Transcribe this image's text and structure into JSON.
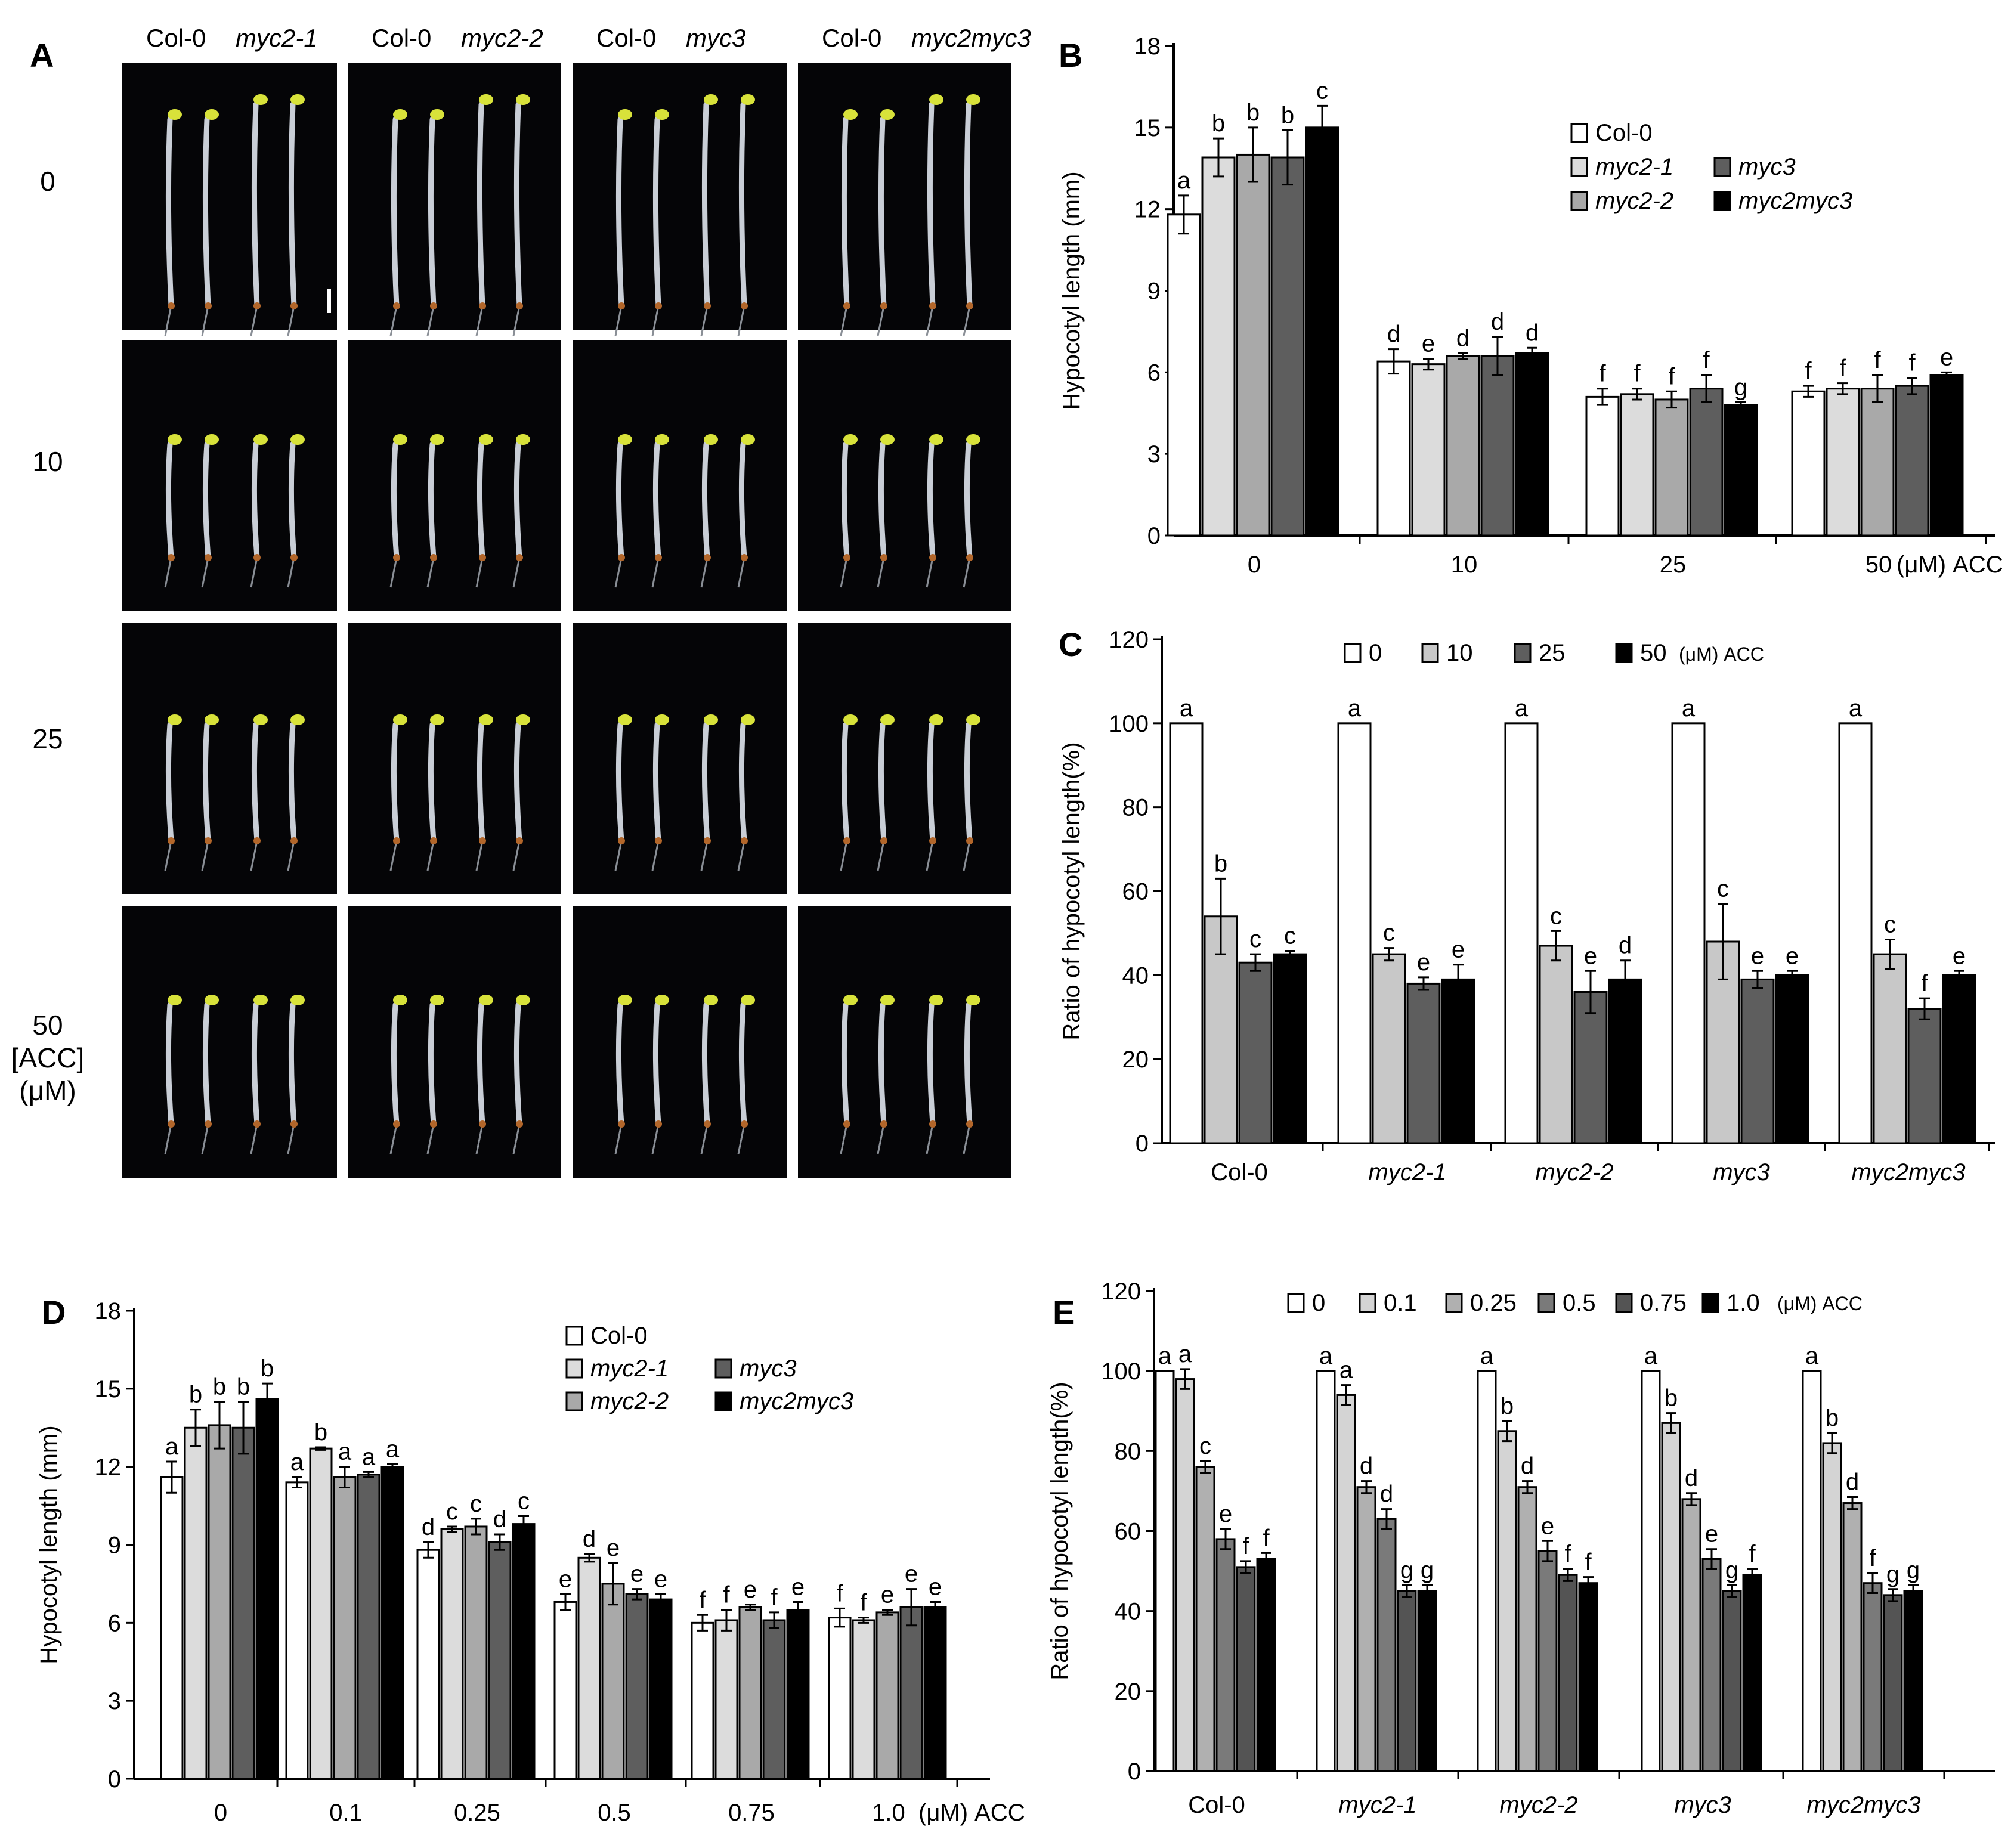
{
  "panel_letters": {
    "A": "A",
    "B": "B",
    "C": "C",
    "D": "D",
    "E": "E"
  },
  "colors": {
    "0": "#ffffff",
    "1": "#dcdcdc",
    "2": "#a9a9a9",
    "3": "#5e5e5e",
    "4": "#000000",
    "photo_bg": "#050507"
  },
  "panel_A": {
    "columns": [
      {
        "pair": [
          "Col-0",
          "myc2-1"
        ]
      },
      {
        "pair": [
          "Col-0",
          "myc2-2"
        ]
      },
      {
        "pair": [
          "Col-0",
          "myc3"
        ]
      },
      {
        "pair": [
          "Col-0",
          "myc2myc3"
        ]
      }
    ],
    "rows": [
      "0",
      "10",
      "25",
      "50"
    ],
    "row_unit_lines": [
      "[ACC]",
      "(μM)"
    ]
  },
  "chart_data": [
    {
      "id": "B",
      "type": "bar",
      "ylabel": "Hypocotyl length (mm)",
      "ylim": [
        0,
        18
      ],
      "yticks": [
        "0",
        "3",
        "6",
        "9",
        "12",
        "15",
        "18"
      ],
      "categories": [
        "0",
        "10",
        "25",
        "50"
      ],
      "xsuffix": "(μM) ACC",
      "legend": [
        "Col-0",
        "myc2-1",
        "myc2-2",
        "myc3",
        "myc2myc3"
      ],
      "legend_layout": "col-0-then-two-columns",
      "series": [
        {
          "name": "Col-0",
          "values": [
            11.8,
            6.4,
            5.1,
            5.3
          ],
          "errors": [
            0.7,
            0.45,
            0.3,
            0.2
          ],
          "letters": [
            "a",
            "d",
            "f",
            "f"
          ]
        },
        {
          "name": "myc2-1",
          "values": [
            13.9,
            6.3,
            5.2,
            5.4
          ],
          "errors": [
            0.7,
            0.2,
            0.2,
            0.2
          ],
          "letters": [
            "b",
            "e",
            "f",
            "f"
          ]
        },
        {
          "name": "myc2-2",
          "values": [
            14.0,
            6.6,
            5.0,
            5.4
          ],
          "errors": [
            1.0,
            0.1,
            0.3,
            0.5
          ],
          "letters": [
            "b",
            "d",
            "f",
            "f"
          ]
        },
        {
          "name": "myc3",
          "values": [
            13.9,
            6.6,
            5.4,
            5.5
          ],
          "errors": [
            1.0,
            0.7,
            0.5,
            0.3
          ],
          "letters": [
            "b",
            "d",
            "f",
            "f"
          ]
        },
        {
          "name": "myc2myc3",
          "values": [
            15.0,
            6.7,
            4.8,
            5.9
          ],
          "errors": [
            0.8,
            0.2,
            0.1,
            0.1
          ],
          "letters": [
            "c",
            "d",
            "g",
            "e"
          ]
        }
      ]
    },
    {
      "id": "C",
      "type": "bar",
      "ylabel": "Ratio of hypocotyl length(%)",
      "ylim": [
        0,
        120
      ],
      "yticks": [
        "0",
        "20",
        "40",
        "60",
        "80",
        "100",
        "120"
      ],
      "categories": [
        "Col-0",
        "myc2-1",
        "myc2-2",
        "myc3",
        "myc2myc3"
      ],
      "xsuffix": "",
      "legend": [
        "0",
        "10",
        "25",
        "50"
      ],
      "legend_suffix": "(μM) ACC",
      "series": [
        {
          "name": "0",
          "values": [
            100,
            100,
            100,
            100,
            100
          ],
          "errors": [
            0,
            0,
            0,
            0,
            0
          ],
          "letters": [
            "a",
            "a",
            "a",
            "a",
            "a"
          ]
        },
        {
          "name": "10",
          "values": [
            54,
            45,
            47,
            48,
            45
          ],
          "errors": [
            9,
            1.5,
            3.5,
            9,
            3.5
          ],
          "letters": [
            "b",
            "c",
            "c",
            "c",
            "c"
          ]
        },
        {
          "name": "25",
          "values": [
            43,
            38,
            36,
            39,
            32
          ],
          "errors": [
            2,
            1.5,
            5,
            2,
            2.5
          ],
          "letters": [
            "c",
            "e",
            "e",
            "e",
            "f"
          ]
        },
        {
          "name": "50",
          "values": [
            45,
            39,
            39,
            40,
            40
          ],
          "errors": [
            0.8,
            3.5,
            4.5,
            1,
            1
          ],
          "letters": [
            "c",
            "e",
            "d",
            "e",
            "e"
          ]
        }
      ]
    },
    {
      "id": "D",
      "type": "bar",
      "ylabel": "Hypocotyl length (mm)",
      "ylim": [
        0,
        18
      ],
      "yticks": [
        "0",
        "3",
        "6",
        "9",
        "12",
        "15",
        "18"
      ],
      "categories": [
        "0",
        "0.1",
        "0.25",
        "0.5",
        "0.75",
        "1.0"
      ],
      "xsuffix": "(μM) ACC",
      "legend": [
        "Col-0",
        "myc2-1",
        "myc2-2",
        "myc3",
        "myc2myc3"
      ],
      "series": [
        {
          "name": "Col-0",
          "values": [
            11.6,
            11.4,
            8.8,
            6.8,
            6.0,
            6.2
          ],
          "errors": [
            0.6,
            0.2,
            0.3,
            0.3,
            0.3,
            0.35
          ],
          "letters": [
            "a",
            "a",
            "d",
            "e",
            "f",
            "f"
          ]
        },
        {
          "name": "myc2-1",
          "values": [
            13.5,
            12.7,
            9.6,
            8.5,
            6.1,
            6.1
          ],
          "errors": [
            0.7,
            0.05,
            0.1,
            0.15,
            0.4,
            0.1
          ],
          "letters": [
            "b",
            "b",
            "c",
            "d",
            "f",
            "f"
          ]
        },
        {
          "name": "myc2-2",
          "values": [
            13.6,
            11.6,
            9.7,
            7.5,
            6.6,
            6.4
          ],
          "errors": [
            0.9,
            0.4,
            0.3,
            0.8,
            0.1,
            0.1
          ],
          "letters": [
            "b",
            "a",
            "c",
            "e",
            "e",
            "e"
          ]
        },
        {
          "name": "myc3",
          "values": [
            13.5,
            11.7,
            9.1,
            7.1,
            6.1,
            6.6
          ],
          "errors": [
            1.0,
            0.1,
            0.3,
            0.2,
            0.3,
            0.7
          ],
          "letters": [
            "b",
            "a",
            "d",
            "e",
            "f",
            "e"
          ]
        },
        {
          "name": "myc2myc3",
          "values": [
            14.6,
            12.0,
            9.8,
            6.9,
            6.5,
            6.6
          ],
          "errors": [
            0.6,
            0.1,
            0.3,
            0.2,
            0.3,
            0.2
          ],
          "letters": [
            "b",
            "a",
            "c",
            "e",
            "e",
            "e"
          ]
        }
      ]
    },
    {
      "id": "E",
      "type": "bar",
      "ylabel": "Ratio of hypocotyl length(%)",
      "ylim": [
        0,
        120
      ],
      "yticks": [
        "0",
        "20",
        "40",
        "60",
        "80",
        "100",
        "120"
      ],
      "categories": [
        "Col-0",
        "myc2-1",
        "myc2-2",
        "myc3",
        "myc2myc3"
      ],
      "xsuffix": "",
      "legend": [
        "0",
        "0.1",
        "0.25",
        "0.5",
        "0.75",
        "1.0"
      ],
      "legend_suffix": "(μM) ACC",
      "series": [
        {
          "name": "0",
          "values": [
            100,
            100,
            100,
            100,
            100
          ],
          "errors": [
            0,
            0,
            0,
            0,
            0
          ],
          "letters": [
            "a",
            "a",
            "a",
            "a",
            "a"
          ]
        },
        {
          "name": "0.1",
          "values": [
            98,
            94,
            85,
            87,
            82
          ],
          "errors": [
            2.5,
            2.5,
            2.5,
            2.5,
            2.5
          ],
          "letters": [
            "a",
            "a",
            "b",
            "b",
            "b"
          ]
        },
        {
          "name": "0.25",
          "values": [
            76,
            71,
            71,
            68,
            67
          ],
          "errors": [
            1.5,
            1.5,
            1.5,
            1.5,
            1.5
          ],
          "letters": [
            "c",
            "d",
            "d",
            "d",
            "d"
          ]
        },
        {
          "name": "0.5",
          "values": [
            58,
            63,
            55,
            53,
            47
          ],
          "errors": [
            2.5,
            2.5,
            2.5,
            2.5,
            2.5
          ],
          "letters": [
            "e",
            "d",
            "e",
            "e",
            "f"
          ]
        },
        {
          "name": "0.75",
          "values": [
            51,
            45,
            49,
            45,
            44
          ],
          "errors": [
            1.5,
            1.5,
            1.5,
            1.5,
            1.5
          ],
          "letters": [
            "f",
            "g",
            "f",
            "g",
            "g"
          ]
        },
        {
          "name": "1.0",
          "values": [
            53,
            45,
            47,
            49,
            45
          ],
          "errors": [
            1.5,
            1.5,
            1.5,
            1.5,
            1.5
          ],
          "letters": [
            "f",
            "g",
            "f",
            "f",
            "g"
          ]
        }
      ]
    }
  ]
}
